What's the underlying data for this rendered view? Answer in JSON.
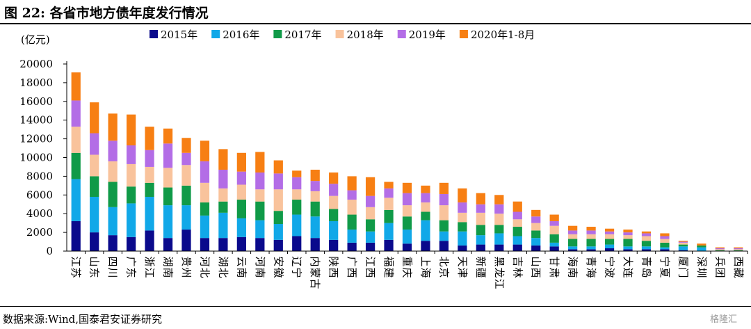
{
  "title": "图 22:  各省市地方债年度发行情况",
  "source": "数据来源:Wind,国泰君安证券研究",
  "watermark": "格隆汇",
  "chart_data": {
    "type": "bar",
    "stacked": true,
    "unit_label": "(亿元)",
    "ylim": [
      0,
      20000
    ],
    "yticks": [
      0,
      2000,
      4000,
      6000,
      8000,
      10000,
      12000,
      14000,
      16000,
      18000,
      20000
    ],
    "grid": false,
    "legend_position": "top",
    "categories": [
      "江苏",
      "山东",
      "四川",
      "广东",
      "浙江",
      "湖南",
      "贵州",
      "河北",
      "湖北",
      "云南",
      "河南",
      "安徽",
      "辽宁",
      "内蒙古",
      "陕西",
      "广西",
      "江西",
      "福建",
      "重庆",
      "上海",
      "北京",
      "天津",
      "新疆",
      "黑龙江",
      "吉林",
      "山西",
      "甘肃",
      "海南",
      "青海",
      "宁波",
      "大连",
      "青岛",
      "宁夏",
      "厦门",
      "深圳",
      "兵团",
      "西藏"
    ],
    "series": [
      {
        "name": "2015年",
        "color": "#0a0a8c",
        "values": [
          3200,
          2000,
          1700,
          1500,
          2200,
          1400,
          2300,
          1400,
          1400,
          1500,
          1400,
          1200,
          1600,
          1400,
          1200,
          900,
          900,
          1200,
          800,
          1100,
          1100,
          600,
          700,
          700,
          700,
          600,
          500,
          200,
          200,
          300,
          200,
          200,
          200,
          100,
          0,
          0,
          0
        ]
      },
      {
        "name": "2016年",
        "color": "#11a8e8",
        "values": [
          4500,
          3800,
          3000,
          3600,
          3600,
          3500,
          2600,
          2400,
          2700,
          2000,
          1900,
          1700,
          2300,
          2300,
          2000,
          1400,
          1200,
          1800,
          1500,
          2200,
          1000,
          1500,
          1000,
          1200,
          900,
          800,
          400,
          300,
          300,
          400,
          300,
          300,
          200,
          400,
          400,
          0,
          0
        ]
      },
      {
        "name": "2017年",
        "color": "#109a48",
        "values": [
          2800,
          2200,
          2700,
          1800,
          1500,
          1900,
          2100,
          1400,
          1200,
          2000,
          2000,
          1400,
          1600,
          1600,
          1300,
          1600,
          1300,
          1400,
          1400,
          900,
          1200,
          1000,
          1100,
          900,
          1000,
          800,
          900,
          800,
          800,
          600,
          800,
          600,
          500,
          200,
          200,
          100,
          100
        ]
      },
      {
        "name": "2018年",
        "color": "#f9c39c",
        "values": [
          2800,
          2300,
          2200,
          2400,
          1700,
          2100,
          2200,
          2100,
          1400,
          1600,
          1300,
          2300,
          1100,
          1100,
          1400,
          1600,
          1300,
          1300,
          1200,
          1000,
          1600,
          1000,
          1300,
          1200,
          800,
          800,
          900,
          500,
          500,
          500,
          400,
          500,
          400,
          200,
          0,
          100,
          100
        ]
      },
      {
        "name": "2019年",
        "color": "#b36de6",
        "values": [
          2800,
          2300,
          2200,
          2000,
          1800,
          2600,
          1300,
          2300,
          2000,
          1400,
          1800,
          1700,
          1300,
          1100,
          1300,
          1000,
          1200,
          1000,
          1300,
          1000,
          1200,
          1100,
          900,
          1000,
          800,
          700,
          500,
          400,
          400,
          300,
          300,
          300,
          300,
          100,
          0,
          100,
          100
        ]
      },
      {
        "name": "2020年1-8月",
        "color": "#f77f13",
        "values": [
          3000,
          3300,
          2900,
          3300,
          2500,
          1600,
          1600,
          2200,
          2200,
          2000,
          2200,
          1400,
          700,
          1200,
          1200,
          1500,
          2000,
          700,
          1100,
          800,
          1200,
          1500,
          1200,
          1000,
          1100,
          700,
          700,
          500,
          400,
          300,
          300,
          200,
          300,
          100,
          200,
          100,
          100
        ]
      }
    ]
  }
}
